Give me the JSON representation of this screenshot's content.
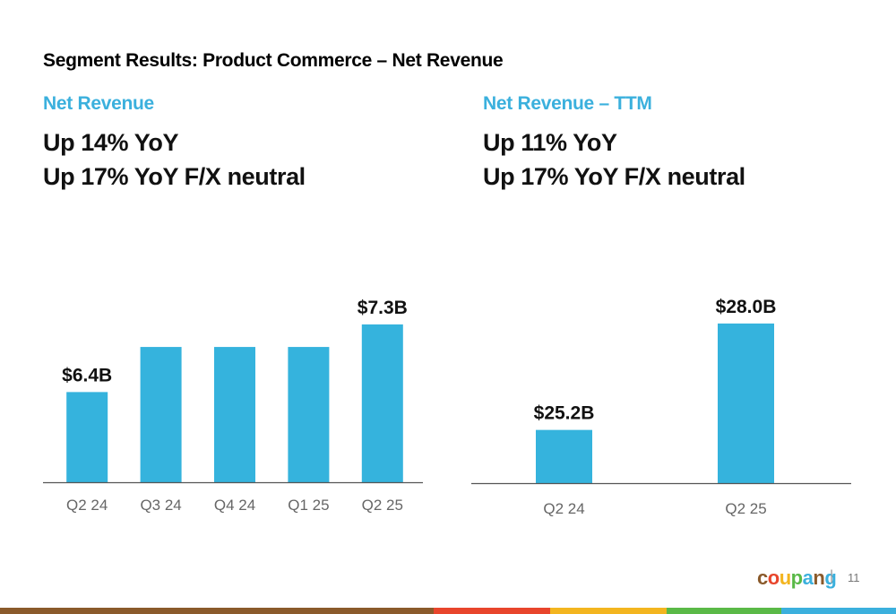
{
  "slide": {
    "title": "Segment Results: Product Commerce – Net Revenue",
    "page_number": "11"
  },
  "left_panel": {
    "heading": "Net Revenue",
    "line1": "Up 14% YoY",
    "line2": "Up 17% YoY F/X neutral"
  },
  "right_panel": {
    "heading": "Net Revenue – TTM",
    "line1": "Up 11% YoY",
    "line2": "Up 17% YoY F/X neutral"
  },
  "logo": {
    "text": "coupang",
    "letter_colors": [
      "#8a5a2b",
      "#e8452c",
      "#f3b51f",
      "#5ab947",
      "#3bb0dd",
      "#8a5a2b",
      "#3bb0dd"
    ]
  },
  "separator": "|",
  "footer_colors": [
    "#8a5a2b",
    "#e8452c",
    "#f3b51f",
    "#5ab947",
    "#3bb0dd"
  ],
  "bar_color": "#35b3dd",
  "chart_data": [
    {
      "type": "bar",
      "title": "",
      "xlabel": "",
      "ylabel": "",
      "categories": [
        "Q2 24",
        "Q3 24",
        "Q4 24",
        "Q1 25",
        "Q2 25"
      ],
      "values": [
        6.4,
        7.0,
        7.0,
        7.0,
        7.3
      ],
      "data_labels": [
        "$6.4B",
        "",
        "",
        "",
        "$7.3B"
      ],
      "unit": "$B",
      "ylim": [
        5.2,
        7.8
      ],
      "grid": false,
      "legend": "none"
    },
    {
      "type": "bar",
      "title": "",
      "xlabel": "",
      "ylabel": "",
      "categories": [
        "Q2 24",
        "Q2 25"
      ],
      "values": [
        25.2,
        28.0
      ],
      "data_labels": [
        "$25.2B",
        "$28.0B"
      ],
      "unit": "$B",
      "ylim": [
        23.8,
        28.8
      ],
      "grid": false,
      "legend": "none"
    }
  ]
}
